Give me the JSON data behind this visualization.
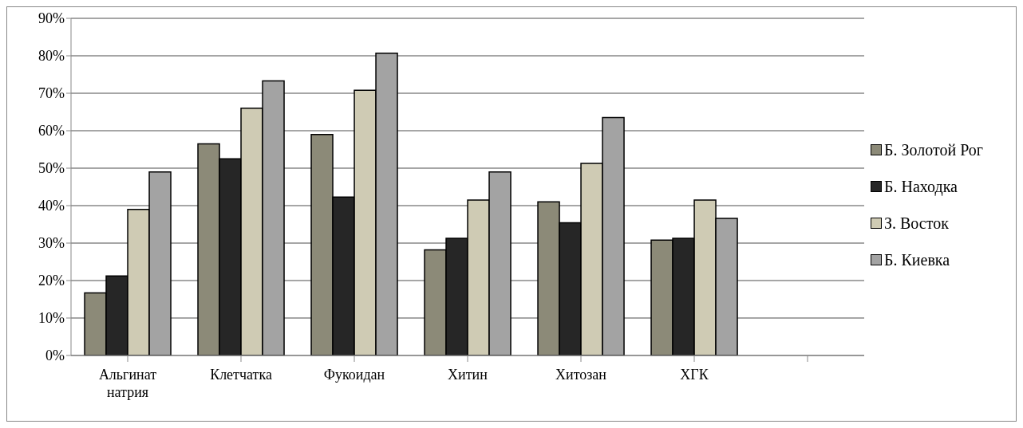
{
  "chart_data": {
    "type": "bar",
    "categories": [
      "Альгинат натрия",
      "Клетчатка",
      "Фукоидан",
      "Хитин",
      "Хитозан",
      "ХГК",
      null
    ],
    "series": [
      {
        "name": "Б. Золотой Рог",
        "color": "#8c8a78",
        "values": [
          16.7,
          56.5,
          59,
          28.2,
          41,
          30.8,
          null
        ]
      },
      {
        "name": "Б. Находка",
        "color": "#262626",
        "values": [
          21.2,
          52.5,
          42.3,
          31.3,
          35.4,
          31.3,
          null
        ]
      },
      {
        "name": "З. Восток",
        "color": "#cfcbb4",
        "values": [
          39,
          66,
          70.8,
          41.5,
          51.3,
          41.5,
          null
        ]
      },
      {
        "name": "Б. Киевка",
        "color": "#a3a3a3",
        "values": [
          49,
          73.3,
          80.7,
          49,
          63.5,
          36.6,
          null
        ]
      }
    ],
    "ylim": [
      0,
      90
    ],
    "yticks": [
      {
        "value": 0,
        "label": "0%"
      },
      {
        "value": 10,
        "label": "10%"
      },
      {
        "value": 20,
        "label": "20%"
      },
      {
        "value": 30,
        "label": "30%"
      },
      {
        "value": 40,
        "label": "40%"
      },
      {
        "value": 50,
        "label": "50%"
      },
      {
        "value": 60,
        "label": "60%"
      },
      {
        "value": 70,
        "label": "70%"
      },
      {
        "value": 80,
        "label": "80%"
      },
      {
        "value": 90,
        "label": "90%"
      }
    ],
    "grid": "y",
    "legend": "right"
  }
}
